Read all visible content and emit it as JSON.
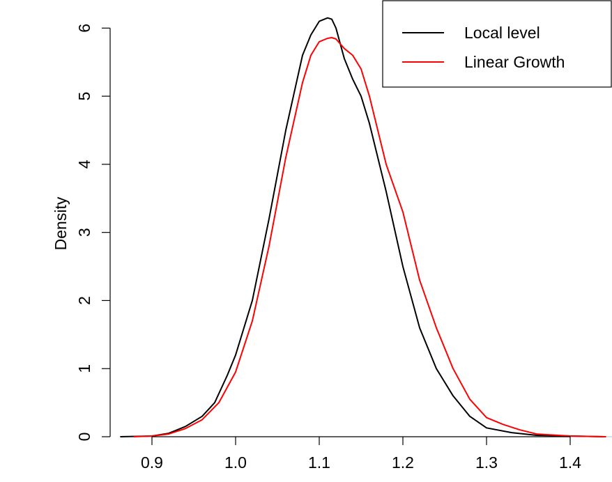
{
  "chart_data": {
    "type": "line",
    "title": "",
    "xlabel": "",
    "ylabel": "Density",
    "xlim": [
      0.85,
      1.45
    ],
    "ylim": [
      0,
      6.3
    ],
    "grid": false,
    "legend_position": "top-right",
    "x_ticks": [
      0.9,
      1.0,
      1.1,
      1.2,
      1.3,
      1.4
    ],
    "x_tick_labels": [
      "0.9",
      "1.0",
      "1.1",
      "1.2",
      "1.3",
      "1.4"
    ],
    "y_ticks": [
      0,
      1,
      2,
      3,
      4,
      5,
      6
    ],
    "y_tick_labels": [
      "0",
      "1",
      "2",
      "3",
      "4",
      "5",
      "6"
    ],
    "baseline_y": 0,
    "baseline_color": "#bebebe",
    "series": [
      {
        "name": "Local level",
        "color": "#000000",
        "x": [
          0.862,
          0.9,
          0.92,
          0.94,
          0.96,
          0.975,
          0.99,
          1.0,
          1.02,
          1.04,
          1.06,
          1.08,
          1.09,
          1.1,
          1.11,
          1.115,
          1.12,
          1.13,
          1.14,
          1.15,
          1.16,
          1.17,
          1.18,
          1.2,
          1.22,
          1.24,
          1.26,
          1.28,
          1.3,
          1.33,
          1.36,
          1.4,
          1.44
        ],
        "y": [
          0,
          0.01,
          0.05,
          0.15,
          0.3,
          0.5,
          0.9,
          1.2,
          2.0,
          3.2,
          4.5,
          5.6,
          5.9,
          6.1,
          6.15,
          6.13,
          6.0,
          5.55,
          5.25,
          5.0,
          4.6,
          4.1,
          3.6,
          2.5,
          1.6,
          1.0,
          0.6,
          0.3,
          0.13,
          0.06,
          0.02,
          0.01,
          0
        ]
      },
      {
        "name": "Linear Growth",
        "color": "#ff0000",
        "x": [
          0.878,
          0.9,
          0.92,
          0.94,
          0.96,
          0.98,
          1.0,
          1.02,
          1.04,
          1.06,
          1.08,
          1.09,
          1.1,
          1.11,
          1.115,
          1.12,
          1.13,
          1.14,
          1.15,
          1.16,
          1.18,
          1.2,
          1.22,
          1.24,
          1.26,
          1.28,
          1.3,
          1.32,
          1.34,
          1.36,
          1.4,
          1.443
        ],
        "y": [
          0,
          0.01,
          0.04,
          0.12,
          0.25,
          0.5,
          0.95,
          1.7,
          2.8,
          4.1,
          5.2,
          5.6,
          5.8,
          5.85,
          5.86,
          5.84,
          5.7,
          5.6,
          5.4,
          5.0,
          4.0,
          3.3,
          2.3,
          1.6,
          1.0,
          0.55,
          0.28,
          0.18,
          0.1,
          0.04,
          0.01,
          0
        ]
      }
    ]
  }
}
